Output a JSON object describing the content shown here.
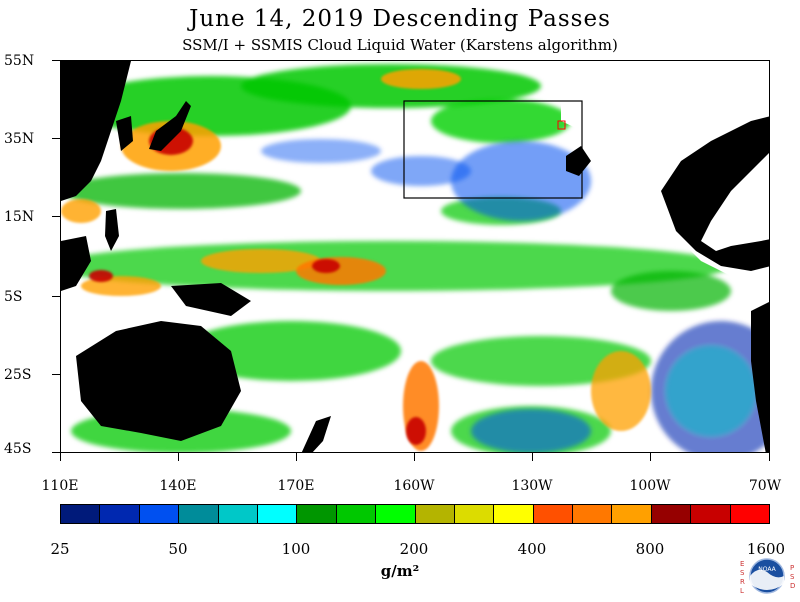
{
  "title": "June 14, 2019  Descending Passes",
  "subtitle": "SSM/I + SSMIS Cloud Liquid Water (Karstens algorithm)",
  "map": {
    "lat_labels": [
      "55N",
      "35N",
      "15N",
      "5S",
      "25S",
      "45S"
    ],
    "lon_labels": [
      "110E",
      "140E",
      "170E",
      "160W",
      "130W",
      "100W",
      "70W"
    ],
    "land_color": "#000000",
    "no_data_color": "#ffffff"
  },
  "colorbar": {
    "colors": [
      "#001a7a",
      "#0028b0",
      "#0050f0",
      "#008c9a",
      "#00c8c8",
      "#00ffff",
      "#009600",
      "#00c800",
      "#00ff00",
      "#b4b400",
      "#dcdc00",
      "#ffff00",
      "#ff5000",
      "#ff7800",
      "#ffa000",
      "#960000",
      "#c80000",
      "#ff0000"
    ],
    "tick_labels": [
      "25",
      "50",
      "100",
      "200",
      "400",
      "800",
      "1600"
    ],
    "unit": "g/m²"
  },
  "logo": {
    "left_letters": "ESRL",
    "right_letters": "PSD",
    "badge_text": "NOAA"
  }
}
